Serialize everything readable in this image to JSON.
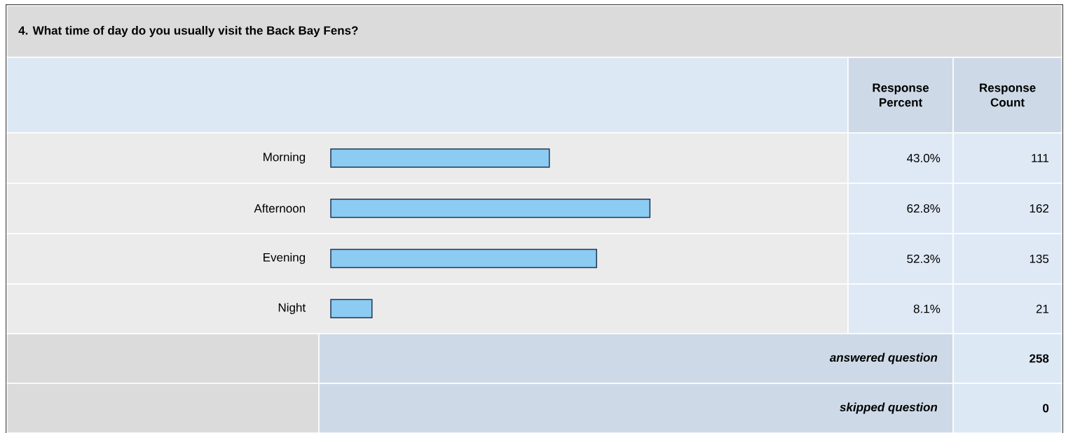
{
  "chart_data": {
    "type": "bar",
    "orientation": "horizontal",
    "title": "4. What time of day do you usually visit the Back Bay Fens?",
    "categories": [
      "Morning",
      "Afternoon",
      "Evening",
      "Night"
    ],
    "values": [
      43.0,
      62.8,
      52.3,
      8.1
    ],
    "value_labels": [
      "43.0%",
      "62.8%",
      "52.3%",
      "8.1%"
    ],
    "color": "#8ccbf2",
    "tick_labels": "y",
    "annotations": [
      "Response Percent",
      "Response Count",
      "111",
      "162",
      "135",
      "21",
      "answered question",
      "258",
      "skipped question",
      "0"
    ]
  }
}
